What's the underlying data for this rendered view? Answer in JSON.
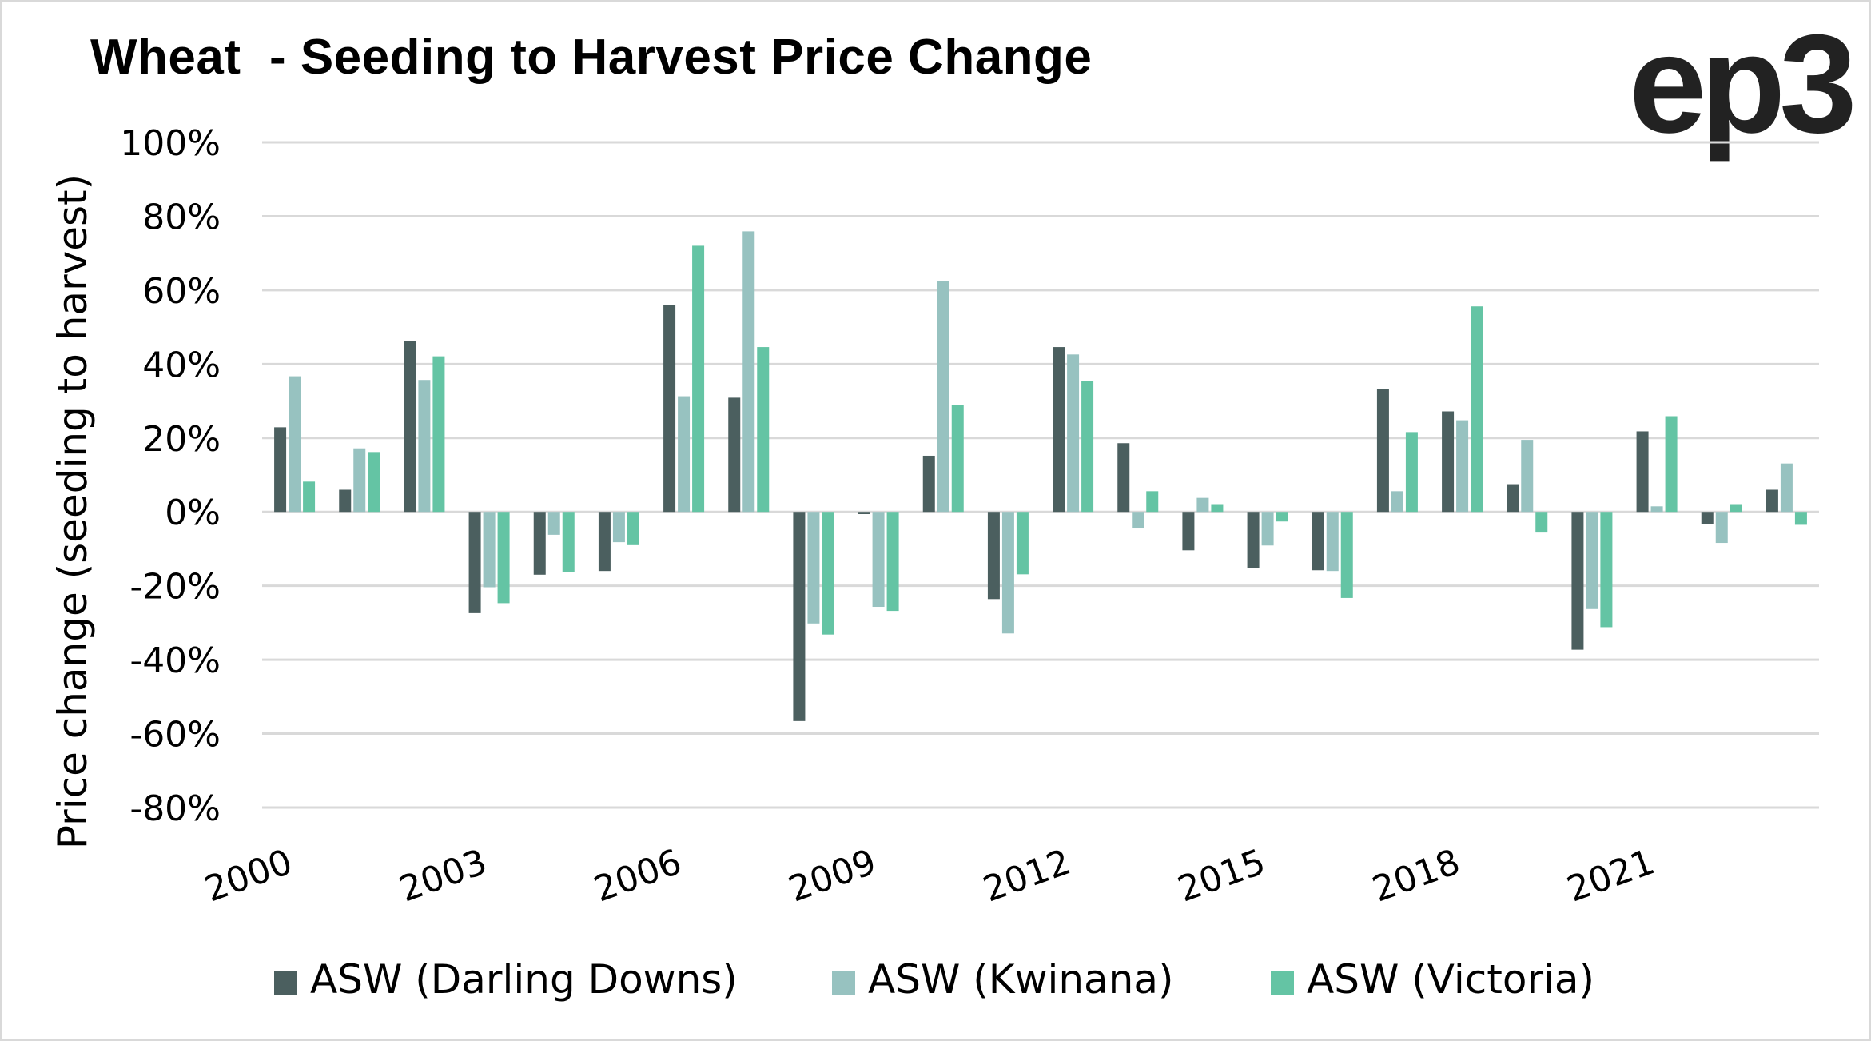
{
  "title": "Wheat  - Seeding to Harvest Price Change",
  "logo": "ep3",
  "chart_data": {
    "type": "bar",
    "title": "Wheat  - Seeding to Harvest Price Change",
    "xlabel": "",
    "ylabel": "Price change (seeding to harvest)",
    "ylim": [
      -80,
      100
    ],
    "yticks": [
      100,
      80,
      60,
      40,
      20,
      0,
      -20,
      -40,
      -60,
      -80
    ],
    "ytick_labels": [
      "100%",
      "80%",
      "60%",
      "40%",
      "20%",
      "0%",
      "-20%",
      "-40%",
      "-60%",
      "-80%"
    ],
    "y_unit": "%",
    "grid": true,
    "legend_position": "bottom",
    "categories": [
      "2000",
      "2001",
      "2002",
      "2003",
      "2004",
      "2005",
      "2006",
      "2007",
      "2008",
      "2009",
      "2010",
      "2011",
      "2012",
      "2013",
      "2014",
      "2015",
      "2016",
      "2017",
      "2018",
      "2019",
      "2020",
      "2021",
      "2022",
      "2023"
    ],
    "xtick_labels": [
      "2000",
      "2003",
      "2006",
      "2009",
      "2012",
      "2015",
      "2018",
      "2021"
    ],
    "series": [
      {
        "name": "ASW (Darling Downs)",
        "color": "#4B5F5F",
        "values": [
          22.9,
          6.0,
          46.3,
          -27.4,
          -17.0,
          -16.0,
          56.0,
          30.9,
          -56.6,
          -0.6,
          15.2,
          -23.6,
          44.6,
          18.6,
          -10.4,
          -15.3,
          -15.8,
          33.3,
          27.2,
          7.5,
          -37.3,
          21.8,
          -3.2,
          6.0
        ]
      },
      {
        "name": "ASW (Kwinana)",
        "color": "#97C2C0",
        "values": [
          36.7,
          17.2,
          35.7,
          -20.4,
          -6.2,
          -8.2,
          31.3,
          75.9,
          -30.2,
          -25.7,
          62.5,
          -32.9,
          42.6,
          -4.5,
          3.8,
          -9.1,
          -16.0,
          5.6,
          24.8,
          19.5,
          -26.3,
          1.5,
          -8.4,
          13.1
        ]
      },
      {
        "name": "ASW (Victoria)",
        "color": "#64C4A4",
        "values": [
          8.2,
          16.2,
          42.1,
          -24.7,
          -16.2,
          -9.0,
          72.0,
          44.6,
          -33.2,
          -26.8,
          28.9,
          -16.9,
          35.5,
          5.6,
          2.1,
          -2.6,
          -23.3,
          21.6,
          55.6,
          -5.6,
          -31.2,
          25.9,
          2.1,
          -3.5
        ]
      }
    ]
  }
}
